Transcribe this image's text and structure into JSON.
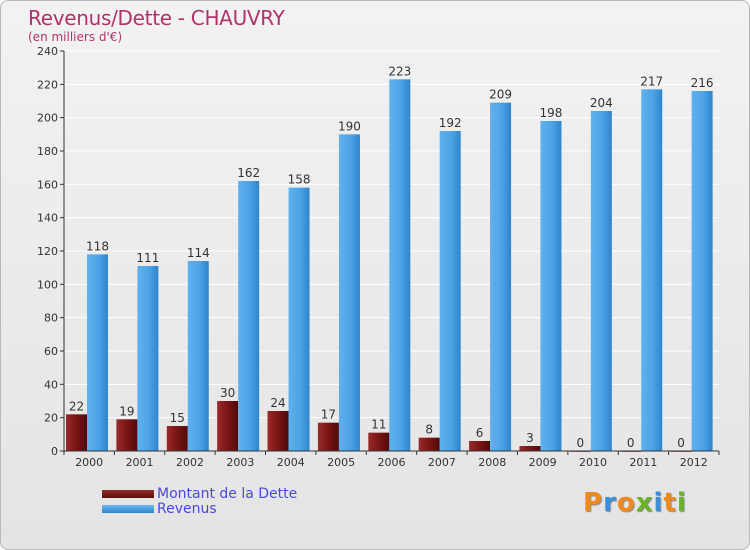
{
  "header": {
    "title": "Revenus/Dette - CHAUVRY",
    "subtitle": "(en milliers d'€)"
  },
  "chart_data": {
    "type": "bar",
    "title": "Revenus/Dette - CHAUVRY",
    "ylabel": "(en milliers d'€)",
    "xlabel": "",
    "ylim": [
      0,
      240
    ],
    "yticks": [
      0,
      20,
      40,
      60,
      80,
      100,
      120,
      140,
      160,
      180,
      200,
      220,
      240
    ],
    "grid": true,
    "legend_position": "bottom-left",
    "categories": [
      "2000",
      "2001",
      "2002",
      "2003",
      "2004",
      "2005",
      "2006",
      "2007",
      "2008",
      "2009",
      "2010",
      "2011",
      "2012"
    ],
    "series": [
      {
        "name": "Montant de la Dette",
        "color": "#7a1515",
        "values": [
          22,
          19,
          15,
          30,
          24,
          17,
          11,
          8,
          6,
          3,
          0,
          0,
          0
        ]
      },
      {
        "name": "Revenus",
        "color": "#4da3e6",
        "values": [
          118,
          111,
          114,
          162,
          158,
          190,
          223,
          192,
          209,
          198,
          204,
          217,
          216
        ]
      }
    ]
  },
  "legend": {
    "debt_label": "Montant de la Dette",
    "revenue_label": "Revenus"
  },
  "logo": {
    "text": "Proxiti",
    "letter_colors": [
      "#f08a1c",
      "#3a8fd8",
      "#f08a1c",
      "#6ab42a",
      "#3a8fd8",
      "#f08a1c",
      "#6ab42a"
    ]
  },
  "colors": {
    "title": "#b0336a",
    "legend_text": "#4a4ad8",
    "grid": "#ffffff",
    "axis": "#333333"
  }
}
